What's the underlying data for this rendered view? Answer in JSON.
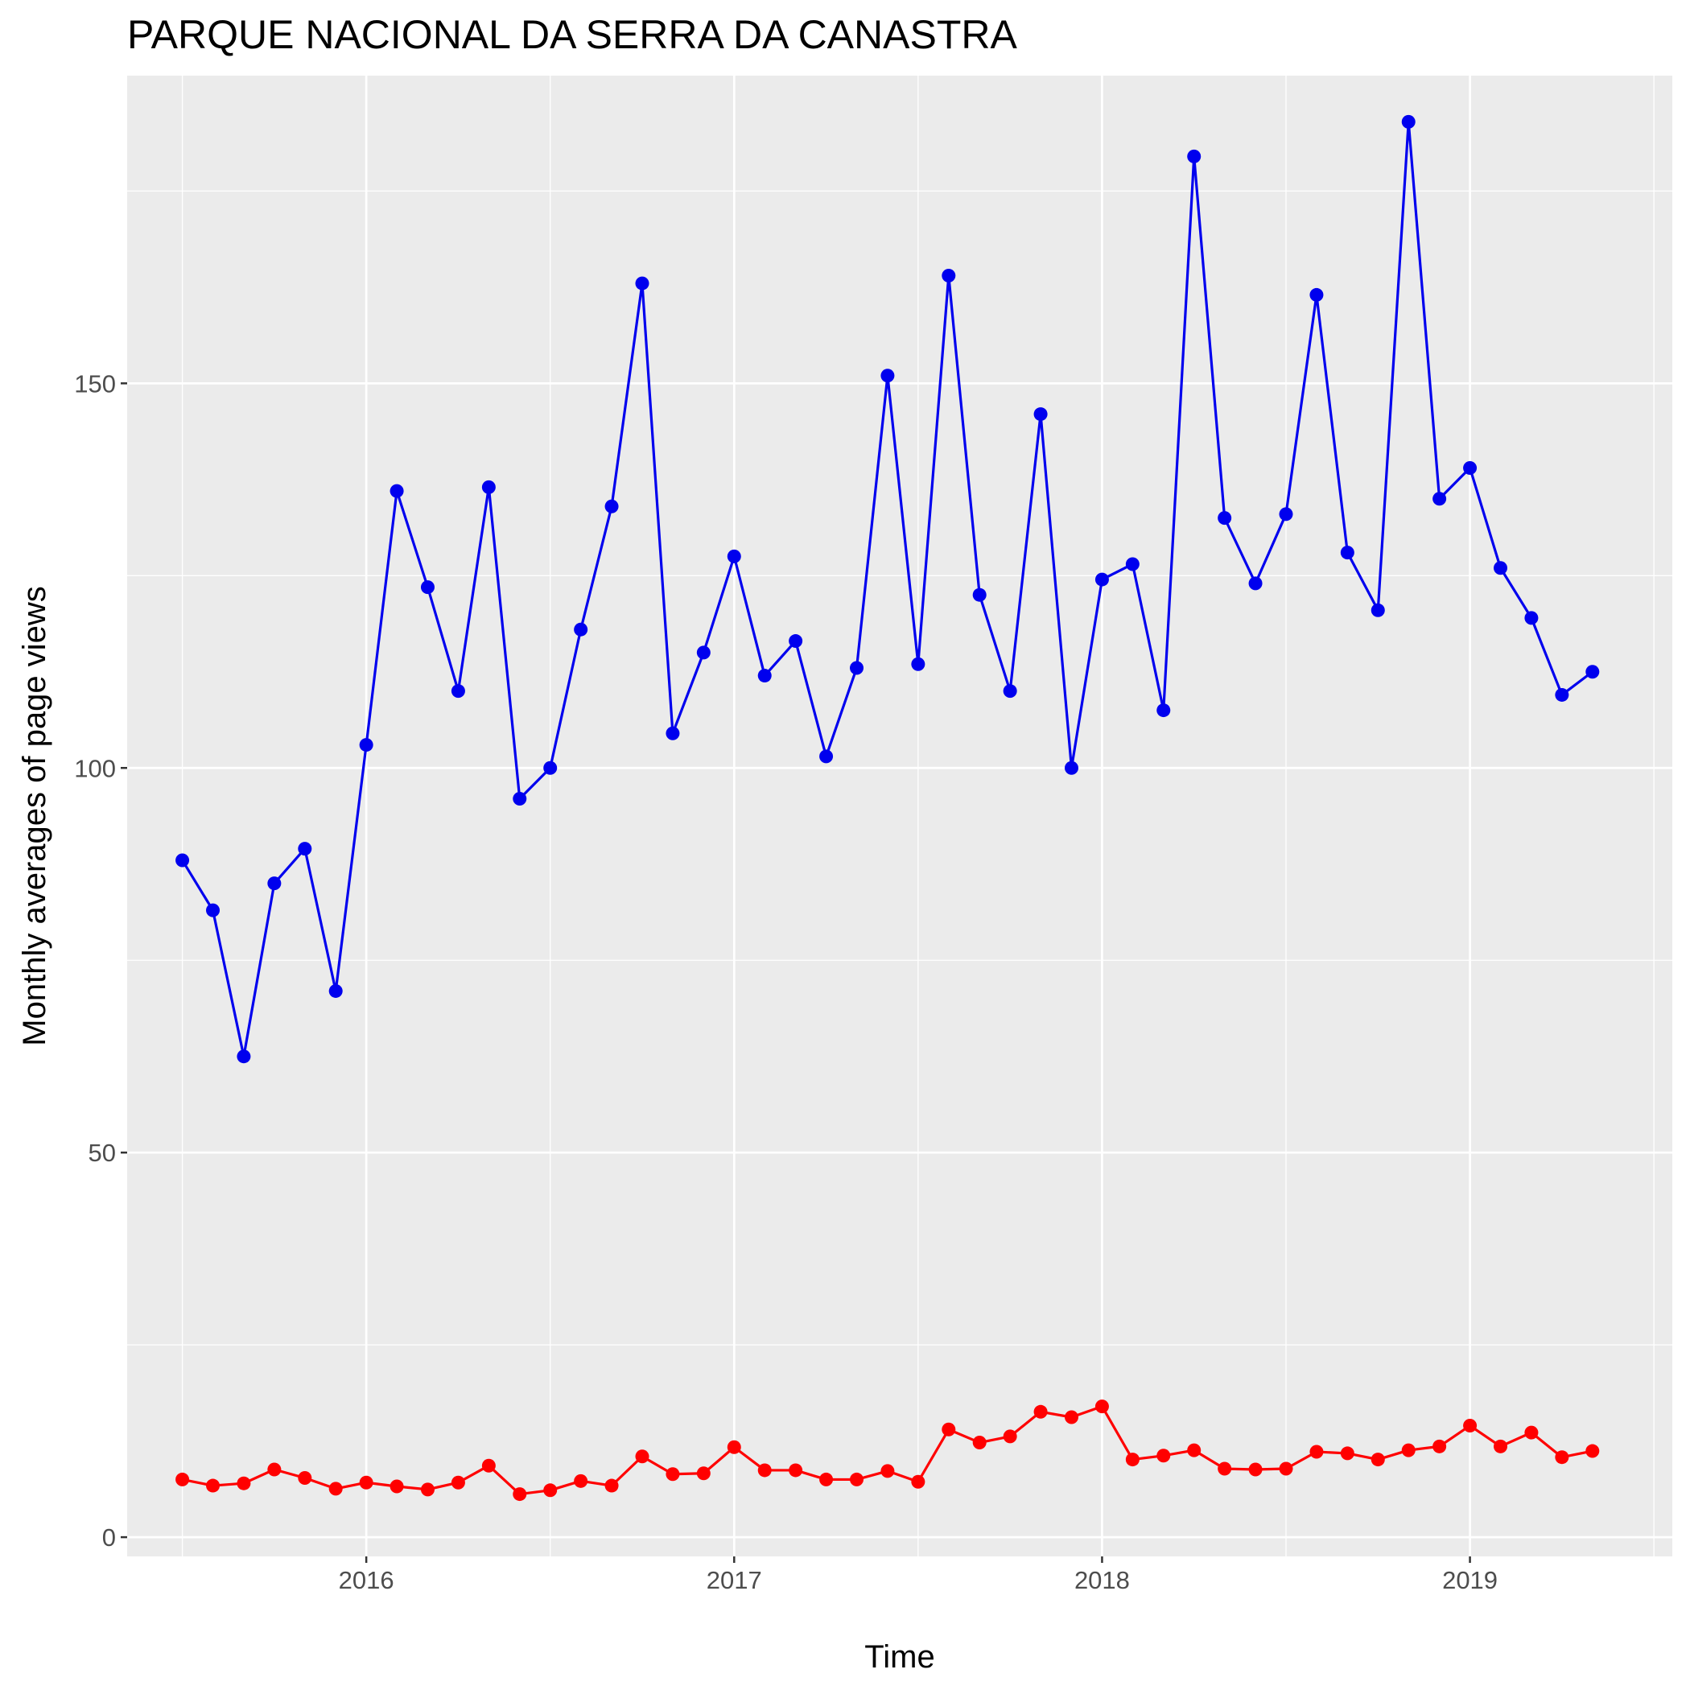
{
  "chart_data": {
    "type": "line",
    "title": "PARQUE NACIONAL DA SERRA DA CANASTRA",
    "xlabel": "Time",
    "ylabel": "Monthly averages of page views",
    "x_tick_labels": [
      "2016",
      "2017",
      "2018",
      "2019"
    ],
    "x_tick_values": [
      2016,
      2017,
      2018,
      2019
    ],
    "y_tick_labels": [
      "0",
      "50",
      "100",
      "150"
    ],
    "y_tick_values": [
      0,
      50,
      100,
      150
    ],
    "xlim": [
      2015.35,
      2019.55
    ],
    "ylim": [
      -2.5,
      190
    ],
    "grid": true,
    "x": [
      2015.5,
      2015.583,
      2015.667,
      2015.75,
      2015.833,
      2015.917,
      2016.0,
      2016.083,
      2016.167,
      2016.25,
      2016.333,
      2016.417,
      2016.5,
      2016.583,
      2016.667,
      2016.75,
      2016.833,
      2016.917,
      2017.0,
      2017.083,
      2017.167,
      2017.25,
      2017.333,
      2017.417,
      2017.5,
      2017.583,
      2017.667,
      2017.75,
      2017.833,
      2017.917,
      2018.0,
      2018.083,
      2018.167,
      2018.25,
      2018.333,
      2018.417,
      2018.5,
      2018.583,
      2018.667,
      2018.75,
      2018.833,
      2018.917,
      2019.0,
      2019.083,
      2019.167,
      2019.25,
      2019.333
    ],
    "series": [
      {
        "name": "blue",
        "color": "#0000ee",
        "values": [
          88,
          81.5,
          62.5,
          85,
          89.5,
          71,
          103,
          136,
          123.5,
          110,
          136.5,
          96,
          100,
          118,
          134,
          163,
          104.5,
          115,
          127.5,
          112,
          116.5,
          101.5,
          113,
          151,
          113.5,
          164,
          122.5,
          110,
          146,
          100,
          124.5,
          126.5,
          107.5,
          179.5,
          132.5,
          124,
          133,
          161.5,
          128,
          120.5,
          184,
          135,
          139,
          126,
          119.5,
          109.5,
          112.5
        ]
      },
      {
        "name": "red",
        "color": "#ff0000",
        "values": [
          7.5,
          6.7,
          7.0,
          8.8,
          7.7,
          6.3,
          7.1,
          6.6,
          6.2,
          7.1,
          9.3,
          5.6,
          6.1,
          7.3,
          6.7,
          10.5,
          8.2,
          8.3,
          11.7,
          8.7,
          8.7,
          7.5,
          7.5,
          8.6,
          7.2,
          14,
          12.3,
          13.1,
          16.3,
          15.6,
          17,
          10.1,
          10.6,
          11.3,
          8.9,
          8.8,
          8.9,
          11.1,
          10.9,
          10.1,
          11.3,
          11.8,
          14.5,
          11.8,
          13.6,
          10.4,
          11.2
        ]
      }
    ]
  }
}
